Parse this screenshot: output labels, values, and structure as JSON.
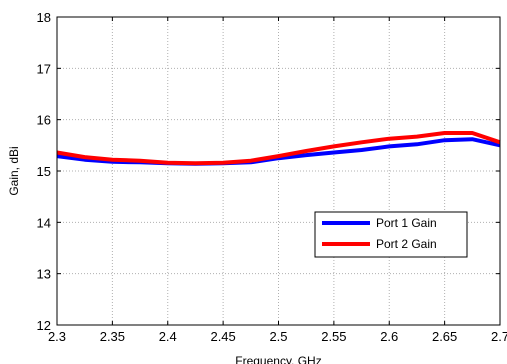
{
  "chart_data": {
    "type": "line",
    "title": "",
    "xlabel": "Frequency, GHz",
    "ylabel": "Gain, dBi",
    "xlim": [
      2.3,
      2.7
    ],
    "ylim": [
      12,
      18
    ],
    "xticks": [
      2.3,
      2.35,
      2.4,
      2.45,
      2.5,
      2.55,
      2.6,
      2.65,
      2.7
    ],
    "xtick_labels": [
      "2.3",
      "2.35",
      "2.4",
      "2.45",
      "2.5",
      "2.55",
      "2.6",
      "2.65",
      "2.7"
    ],
    "yticks": [
      12,
      13,
      14,
      15,
      16,
      17,
      18
    ],
    "ytick_labels": [
      "12",
      "13",
      "14",
      "15",
      "16",
      "17",
      "18"
    ],
    "grid": true,
    "legend_position": "lower-right",
    "x": [
      2.3,
      2.325,
      2.35,
      2.375,
      2.4,
      2.425,
      2.45,
      2.475,
      2.5,
      2.525,
      2.55,
      2.575,
      2.6,
      2.625,
      2.65,
      2.675,
      2.7
    ],
    "series": [
      {
        "name": "Port 1 Gain",
        "color": "#0000ff",
        "values": [
          15.29,
          15.22,
          15.18,
          15.17,
          15.15,
          15.14,
          15.15,
          15.17,
          15.25,
          15.31,
          15.36,
          15.41,
          15.48,
          15.52,
          15.6,
          15.62,
          15.5
        ]
      },
      {
        "name": "Port 2 Gain",
        "color": "#ff0000",
        "values": [
          15.36,
          15.27,
          15.22,
          15.2,
          15.16,
          15.15,
          15.16,
          15.2,
          15.29,
          15.39,
          15.48,
          15.56,
          15.63,
          15.67,
          15.74,
          15.74,
          15.56
        ]
      }
    ]
  }
}
